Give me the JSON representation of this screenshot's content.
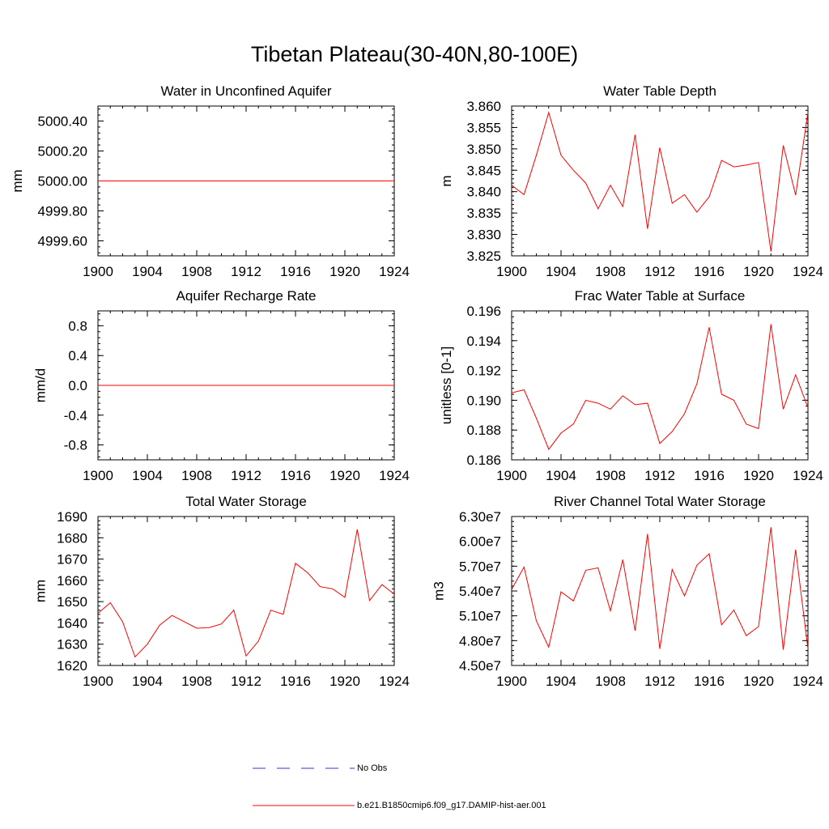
{
  "title": "Tibetan Plateau(30-40N,80-100E)",
  "colors": {
    "model_line": "#ff0000",
    "obs_line": "#3333cc",
    "axis": "#000000"
  },
  "legend": [
    {
      "label": "No Obs",
      "style": "dashed",
      "color": "#3333cc"
    },
    {
      "label": "b.e21.B1850cmip6.f09_g17.DAMIP-hist-aer.001",
      "style": "solid",
      "color": "#ff0000"
    }
  ],
  "chart_data": [
    {
      "type": "line",
      "title": "Water in Unconfined Aquifer",
      "ylabel": "mm",
      "xlabel": "",
      "xlim": [
        1900,
        1924
      ],
      "ylim": [
        4999.5,
        5000.5
      ],
      "xticks": [
        "1900",
        "1904",
        "1908",
        "1912",
        "1916",
        "1920",
        "1924"
      ],
      "yticks": [
        {
          "v": 4999.6,
          "label": "4999.60"
        },
        {
          "v": 4999.8,
          "label": "4999.80"
        },
        {
          "v": 5000.0,
          "label": "5000.00"
        },
        {
          "v": 5000.2,
          "label": "5000.20"
        },
        {
          "v": 5000.4,
          "label": "5000.40"
        }
      ],
      "x": [
        1900,
        1901,
        1902,
        1903,
        1904,
        1905,
        1906,
        1907,
        1908,
        1909,
        1910,
        1911,
        1912,
        1913,
        1914,
        1915,
        1916,
        1917,
        1918,
        1919,
        1920,
        1921,
        1922,
        1923,
        1924
      ],
      "series": [
        {
          "values": [
            5000,
            5000,
            5000,
            5000,
            5000,
            5000,
            5000,
            5000,
            5000,
            5000,
            5000,
            5000,
            5000,
            5000,
            5000,
            5000,
            5000,
            5000,
            5000,
            5000,
            5000,
            5000,
            5000,
            5000,
            5000
          ]
        }
      ]
    },
    {
      "type": "line",
      "title": "Water Table Depth",
      "ylabel": "m",
      "xlabel": "",
      "xlim": [
        1900,
        1924
      ],
      "ylim": [
        3.825,
        3.86
      ],
      "xticks": [
        "1900",
        "1904",
        "1908",
        "1912",
        "1916",
        "1920",
        "1924"
      ],
      "yticks": [
        {
          "v": 3.825,
          "label": "3.825"
        },
        {
          "v": 3.83,
          "label": "3.830"
        },
        {
          "v": 3.835,
          "label": "3.835"
        },
        {
          "v": 3.84,
          "label": "3.840"
        },
        {
          "v": 3.845,
          "label": "3.845"
        },
        {
          "v": 3.85,
          "label": "3.850"
        },
        {
          "v": 3.855,
          "label": "3.855"
        },
        {
          "v": 3.86,
          "label": "3.860"
        }
      ],
      "x": [
        1900,
        1901,
        1902,
        1903,
        1904,
        1905,
        1906,
        1907,
        1908,
        1909,
        1910,
        1911,
        1912,
        1913,
        1914,
        1915,
        1916,
        1917,
        1918,
        1919,
        1920,
        1921,
        1922,
        1923,
        1924
      ],
      "series": [
        {
          "values": [
            3.8415,
            3.8393,
            3.8485,
            3.8585,
            3.8485,
            3.845,
            3.842,
            3.836,
            3.8415,
            3.8365,
            3.8533,
            3.8313,
            3.8503,
            3.8373,
            3.8393,
            3.8352,
            3.8388,
            3.8473,
            3.8458,
            3.8462,
            3.8468,
            3.826,
            3.8508,
            3.8392,
            3.8585
          ]
        }
      ]
    },
    {
      "type": "line",
      "title": "Aquifer Recharge Rate",
      "ylabel": "mm/d",
      "xlabel": "",
      "xlim": [
        1900,
        1924
      ],
      "ylim": [
        -1.0,
        1.0
      ],
      "xticks": [
        "1900",
        "1904",
        "1908",
        "1912",
        "1916",
        "1920",
        "1924"
      ],
      "yticks": [
        {
          "v": -0.8,
          "label": "-0.8"
        },
        {
          "v": -0.4,
          "label": "-0.4"
        },
        {
          "v": 0.0,
          "label": "0.0"
        },
        {
          "v": 0.4,
          "label": "0.4"
        },
        {
          "v": 0.8,
          "label": "0.8"
        }
      ],
      "x": [
        1900,
        1901,
        1902,
        1903,
        1904,
        1905,
        1906,
        1907,
        1908,
        1909,
        1910,
        1911,
        1912,
        1913,
        1914,
        1915,
        1916,
        1917,
        1918,
        1919,
        1920,
        1921,
        1922,
        1923,
        1924
      ],
      "series": [
        {
          "values": [
            0,
            0,
            0,
            0,
            0,
            0,
            0,
            0,
            0,
            0,
            0,
            0,
            0,
            0,
            0,
            0,
            0,
            0,
            0,
            0,
            0,
            0,
            0,
            0,
            0
          ]
        }
      ]
    },
    {
      "type": "line",
      "title": "Frac Water Table at Surface",
      "ylabel": "unitless [0-1]",
      "xlabel": "",
      "xlim": [
        1900,
        1924
      ],
      "ylim": [
        0.186,
        0.196
      ],
      "xticks": [
        "1900",
        "1904",
        "1908",
        "1912",
        "1916",
        "1920",
        "1924"
      ],
      "yticks": [
        {
          "v": 0.186,
          "label": "0.186"
        },
        {
          "v": 0.188,
          "label": "0.188"
        },
        {
          "v": 0.19,
          "label": "0.190"
        },
        {
          "v": 0.192,
          "label": "0.192"
        },
        {
          "v": 0.194,
          "label": "0.194"
        },
        {
          "v": 0.196,
          "label": "0.196"
        }
      ],
      "x": [
        1900,
        1901,
        1902,
        1903,
        1904,
        1905,
        1906,
        1907,
        1908,
        1909,
        1910,
        1911,
        1912,
        1913,
        1914,
        1915,
        1916,
        1917,
        1918,
        1919,
        1920,
        1921,
        1922,
        1923,
        1924
      ],
      "series": [
        {
          "values": [
            0.1905,
            0.1907,
            0.1888,
            0.1867,
            0.1878,
            0.1884,
            0.19,
            0.1898,
            0.1894,
            0.1903,
            0.1897,
            0.1898,
            0.1871,
            0.1879,
            0.1891,
            0.1911,
            0.1949,
            0.1904,
            0.19,
            0.1884,
            0.1881,
            0.1951,
            0.1894,
            0.1917,
            0.1895
          ]
        }
      ]
    },
    {
      "type": "line",
      "title": "Total Water Storage",
      "ylabel": "mm",
      "xlabel": "",
      "xlim": [
        1900,
        1924
      ],
      "ylim": [
        1620,
        1690
      ],
      "xticks": [
        "1900",
        "1904",
        "1908",
        "1912",
        "1916",
        "1920",
        "1924"
      ],
      "yticks": [
        {
          "v": 1620,
          "label": "1620"
        },
        {
          "v": 1630,
          "label": "1630"
        },
        {
          "v": 1640,
          "label": "1640"
        },
        {
          "v": 1650,
          "label": "1650"
        },
        {
          "v": 1660,
          "label": "1660"
        },
        {
          "v": 1670,
          "label": "1670"
        },
        {
          "v": 1680,
          "label": "1680"
        },
        {
          "v": 1690,
          "label": "1690"
        }
      ],
      "x": [
        1900,
        1901,
        1902,
        1903,
        1904,
        1905,
        1906,
        1907,
        1908,
        1909,
        1910,
        1911,
        1912,
        1913,
        1914,
        1915,
        1916,
        1917,
        1918,
        1919,
        1920,
        1921,
        1922,
        1923,
        1924
      ],
      "series": [
        {
          "values": [
            1644.5,
            1649.5,
            1640.5,
            1624,
            1630,
            1639,
            1643.5,
            1640.5,
            1637.5,
            1637.8,
            1639.5,
            1646,
            1624.5,
            1631.5,
            1646,
            1644,
            1668,
            1663.5,
            1657,
            1656,
            1652,
            1684,
            1650.5,
            1658,
            1653.5
          ]
        }
      ]
    },
    {
      "type": "line",
      "title": "River Channel Total Water Storage",
      "ylabel": "m3",
      "xlabel": "",
      "xlim": [
        1900,
        1924
      ],
      "ylim": [
        45000000,
        63000000
      ],
      "xticks": [
        "1900",
        "1904",
        "1908",
        "1912",
        "1916",
        "1920",
        "1924"
      ],
      "yticks": [
        {
          "v": 45000000,
          "label": "4.50e7"
        },
        {
          "v": 48000000,
          "label": "4.80e7"
        },
        {
          "v": 51000000,
          "label": "5.10e7"
        },
        {
          "v": 54000000,
          "label": "5.40e7"
        },
        {
          "v": 57000000,
          "label": "5.70e7"
        },
        {
          "v": 60000000,
          "label": "6.00e7"
        },
        {
          "v": 63000000,
          "label": "6.30e7"
        }
      ],
      "x": [
        1900,
        1901,
        1902,
        1903,
        1904,
        1905,
        1906,
        1907,
        1908,
        1909,
        1910,
        1911,
        1912,
        1913,
        1914,
        1915,
        1916,
        1917,
        1918,
        1919,
        1920,
        1921,
        1922,
        1923,
        1924
      ],
      "series": [
        {
          "values": [
            54200000,
            56900000,
            50400000,
            47200000,
            53900000,
            52800000,
            56500000,
            56800000,
            51600000,
            57800000,
            49200000,
            60900000,
            47000000,
            56600000,
            53400000,
            57100000,
            58500000,
            49900000,
            51700000,
            48600000,
            49700000,
            61700000,
            46900000,
            59000000,
            47000000
          ]
        }
      ]
    }
  ]
}
